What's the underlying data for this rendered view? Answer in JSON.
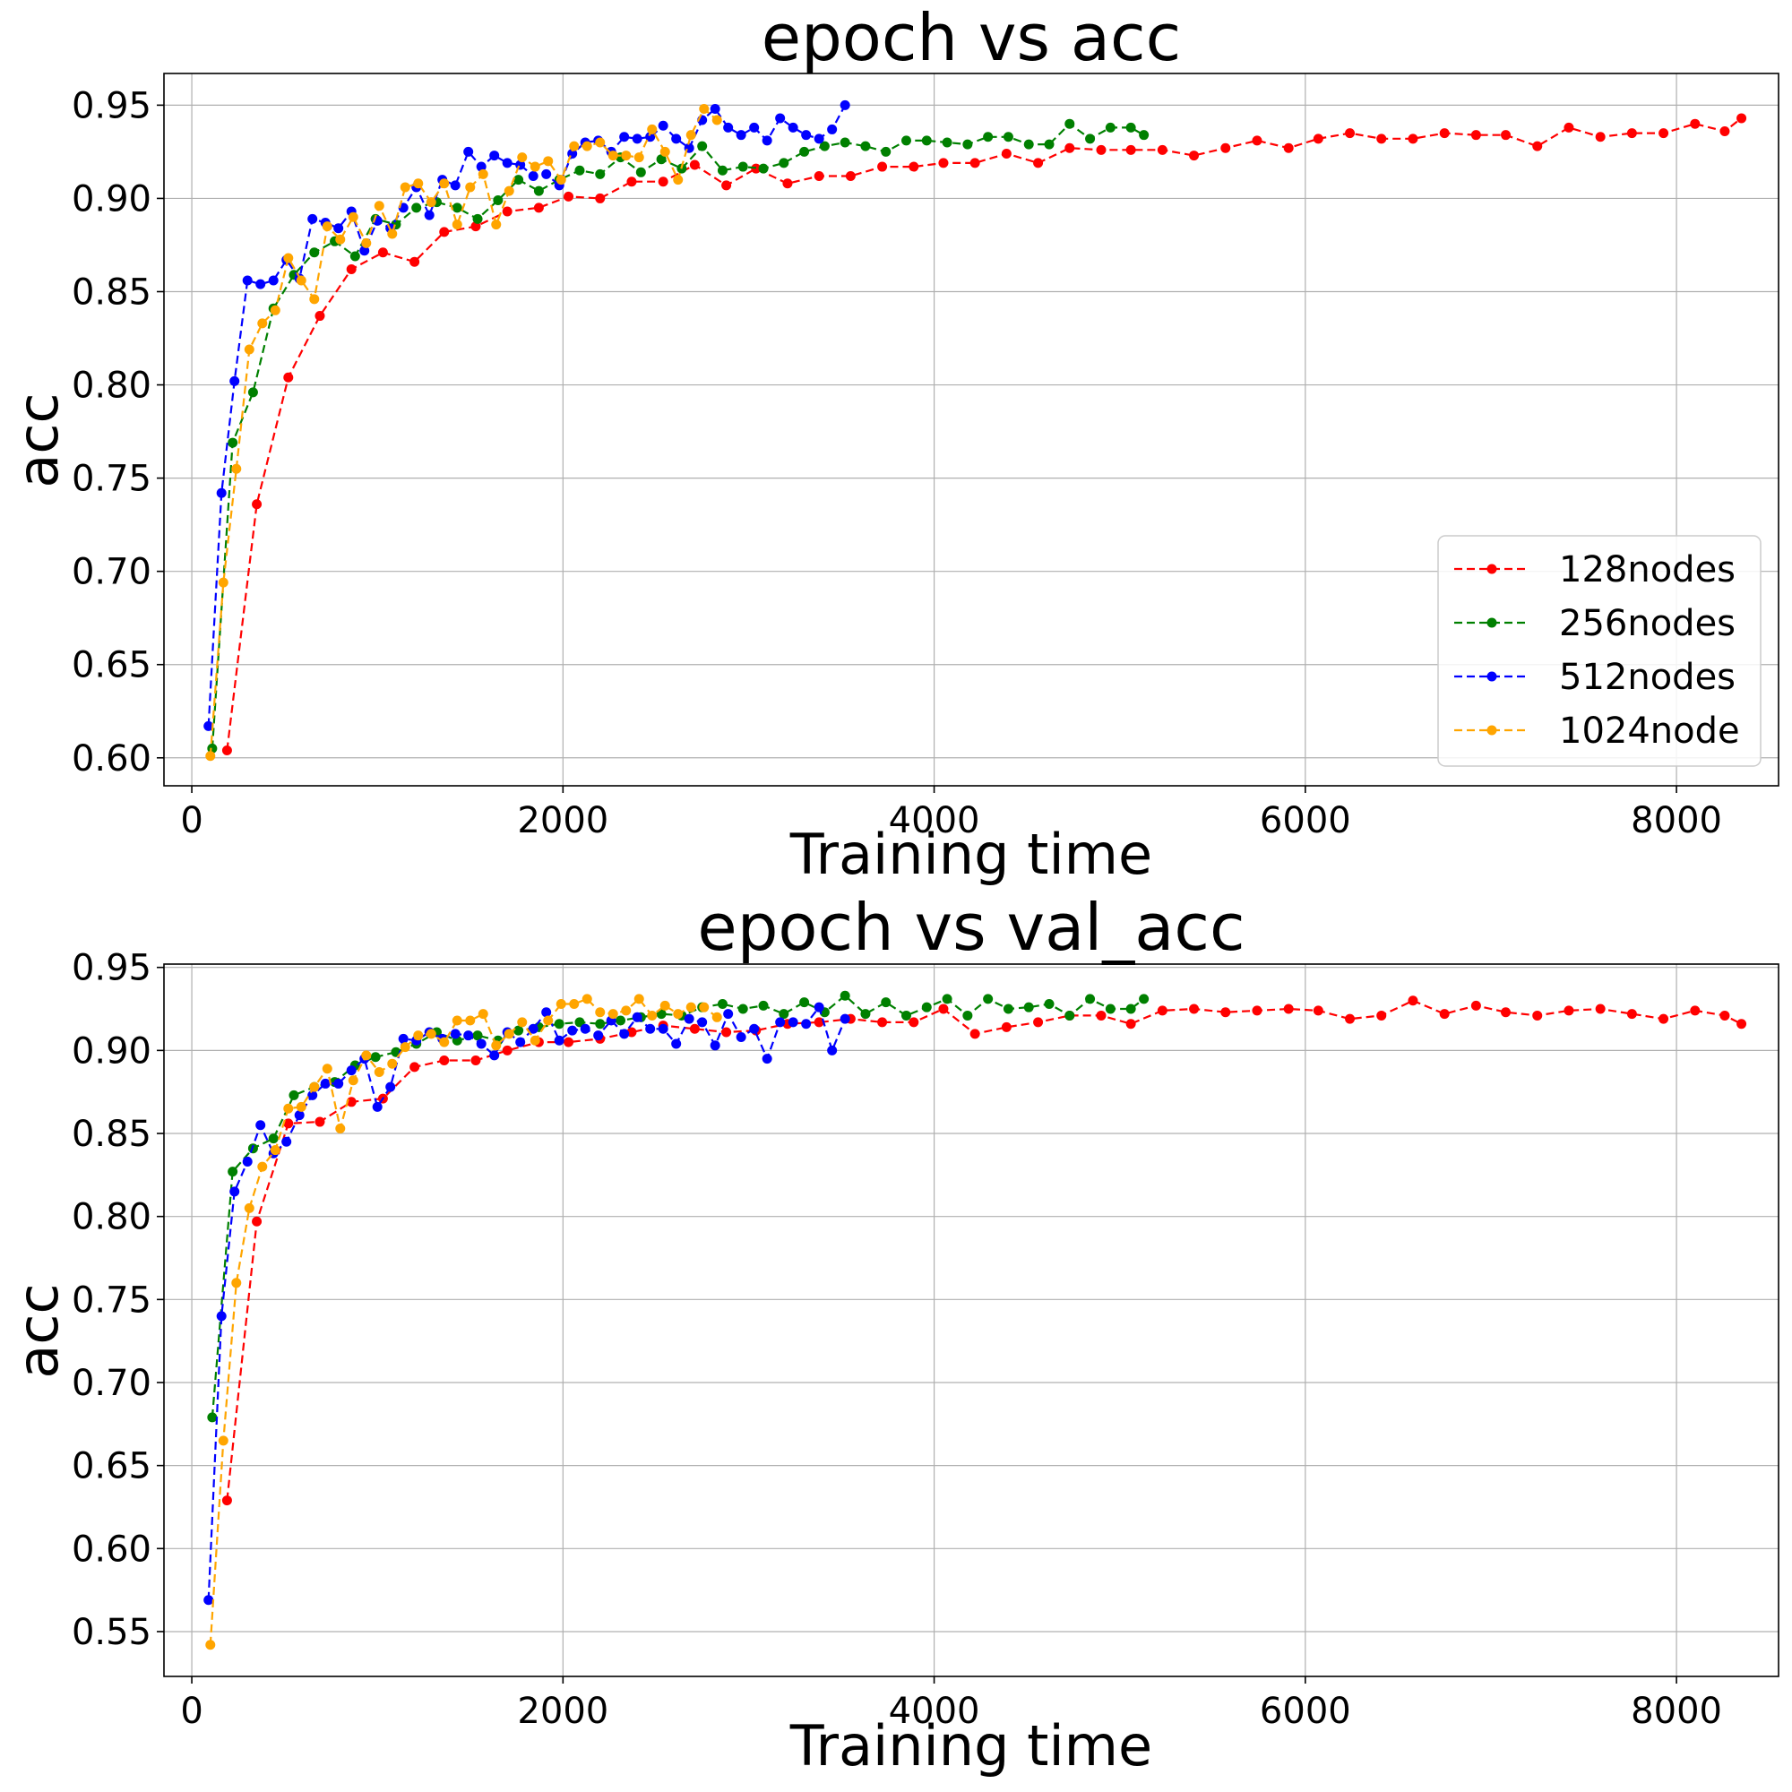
{
  "chart_data": [
    {
      "type": "line",
      "title": "epoch vs acc",
      "xlabel": "Training time",
      "ylabel": "acc",
      "xlim": [
        -150,
        8550
      ],
      "ylim": [
        0.585,
        0.967
      ],
      "xticks": [
        0,
        2000,
        4000,
        6000,
        8000
      ],
      "xtick_labels": [
        "0",
        "2000",
        "4000",
        "6000",
        "8000"
      ],
      "yticks": [
        0.6,
        0.65,
        0.7,
        0.75,
        0.8,
        0.85,
        0.9,
        0.95
      ],
      "ytick_labels": [
        "0.60",
        "0.65",
        "0.70",
        "0.75",
        "0.80",
        "0.85",
        "0.90",
        "0.95"
      ],
      "grid": true,
      "legend": "lower right",
      "series": [
        {
          "name": "128nodes",
          "color": "#ff0000",
          "style": "dashed",
          "marker": "circle",
          "x": [
            190,
            350,
            520,
            690,
            860,
            1030,
            1200,
            1360,
            1530,
            1700,
            1870,
            2030,
            2200,
            2370,
            2540,
            2710,
            2880,
            3040,
            3210,
            3380,
            3550,
            3720,
            3890,
            4050,
            4220,
            4390,
            4560,
            4730,
            4900,
            5060,
            5230,
            5400,
            5570,
            5740,
            5910,
            6070,
            6240,
            6410,
            6580,
            6750,
            6920,
            7080,
            7250,
            7420,
            7590,
            7760,
            7930,
            8100,
            8260,
            8350
          ],
          "y": [
            0.604,
            0.736,
            0.804,
            0.837,
            0.862,
            0.871,
            0.866,
            0.882,
            0.885,
            0.893,
            0.895,
            0.901,
            0.9,
            0.909,
            0.909,
            0.918,
            0.907,
            0.916,
            0.908,
            0.912,
            0.912,
            0.917,
            0.917,
            0.919,
            0.919,
            0.924,
            0.919,
            0.927,
            0.926,
            0.926,
            0.926,
            0.923,
            0.927,
            0.931,
            0.927,
            0.932,
            0.935,
            0.932,
            0.932,
            0.935,
            0.934,
            0.934,
            0.928,
            0.938,
            0.933,
            0.935,
            0.935,
            0.94,
            0.936,
            0.943
          ]
        },
        {
          "name": "256nodes",
          "color": "#008000",
          "style": "dashed",
          "marker": "circle",
          "x": [
            110,
            220,
            330,
            440,
            550,
            660,
            770,
            880,
            990,
            1100,
            1210,
            1320,
            1430,
            1540,
            1650,
            1760,
            1870,
            1980,
            2090,
            2200,
            2310,
            2420,
            2530,
            2640,
            2750,
            2860,
            2970,
            3080,
            3190,
            3300,
            3410,
            3520,
            3630,
            3740,
            3850,
            3960,
            4070,
            4180,
            4290,
            4400,
            4510,
            4620,
            4730,
            4840,
            4950,
            5060,
            5130
          ],
          "y": [
            0.605,
            0.769,
            0.796,
            0.841,
            0.859,
            0.871,
            0.877,
            0.869,
            0.889,
            0.886,
            0.895,
            0.898,
            0.895,
            0.889,
            0.899,
            0.91,
            0.904,
            0.91,
            0.915,
            0.913,
            0.922,
            0.914,
            0.921,
            0.916,
            0.928,
            0.915,
            0.917,
            0.916,
            0.919,
            0.925,
            0.928,
            0.93,
            0.928,
            0.925,
            0.931,
            0.931,
            0.93,
            0.929,
            0.933,
            0.933,
            0.929,
            0.929,
            0.94,
            0.932,
            0.938,
            0.938,
            0.934
          ]
        },
        {
          "name": "512nodes",
          "color": "#0000ff",
          "style": "dashed",
          "marker": "circle",
          "x": [
            90,
            160,
            230,
            300,
            370,
            440,
            510,
            580,
            650,
            720,
            790,
            860,
            930,
            1000,
            1070,
            1140,
            1210,
            1280,
            1350,
            1420,
            1490,
            1560,
            1630,
            1700,
            1770,
            1840,
            1910,
            1980,
            2050,
            2120,
            2190,
            2260,
            2330,
            2400,
            2470,
            2540,
            2610,
            2680,
            2750,
            2820,
            2890,
            2960,
            3030,
            3100,
            3170,
            3240,
            3310,
            3380,
            3450,
            3520
          ],
          "y": [
            0.617,
            0.742,
            0.802,
            0.856,
            0.854,
            0.856,
            0.867,
            0.857,
            0.889,
            0.887,
            0.884,
            0.893,
            0.872,
            0.888,
            0.884,
            0.895,
            0.906,
            0.891,
            0.91,
            0.907,
            0.925,
            0.917,
            0.923,
            0.919,
            0.918,
            0.912,
            0.913,
            0.907,
            0.924,
            0.93,
            0.931,
            0.925,
            0.933,
            0.932,
            0.933,
            0.939,
            0.932,
            0.927,
            0.942,
            0.948,
            0.938,
            0.934,
            0.938,
            0.931,
            0.943,
            0.938,
            0.934,
            0.932,
            0.937,
            0.95
          ]
        },
        {
          "name": "1024node",
          "color": "#ffa500",
          "style": "dashed",
          "marker": "circle",
          "x": [
            100,
            170,
            240,
            310,
            380,
            450,
            520,
            590,
            660,
            730,
            800,
            870,
            940,
            1010,
            1080,
            1150,
            1220,
            1290,
            1360,
            1430,
            1500,
            1570,
            1640,
            1710,
            1780,
            1850,
            1920,
            1990,
            2060,
            2130,
            2200,
            2270,
            2340,
            2410,
            2480,
            2550,
            2620,
            2690,
            2760,
            2830
          ],
          "y": [
            0.601,
            0.694,
            0.755,
            0.819,
            0.833,
            0.84,
            0.868,
            0.856,
            0.846,
            0.885,
            0.878,
            0.89,
            0.876,
            0.896,
            0.881,
            0.906,
            0.908,
            0.898,
            0.908,
            0.886,
            0.906,
            0.913,
            0.886,
            0.904,
            0.922,
            0.917,
            0.92,
            0.91,
            0.928,
            0.928,
            0.93,
            0.923,
            0.923,
            0.922,
            0.937,
            0.925,
            0.91,
            0.934,
            0.948,
            0.942
          ]
        }
      ]
    },
    {
      "type": "line",
      "title": "epoch vs val_acc",
      "xlabel": "Training time",
      "ylabel": "acc",
      "xlim": [
        -150,
        8550
      ],
      "ylim": [
        0.523,
        0.952
      ],
      "xticks": [
        0,
        2000,
        4000,
        6000,
        8000
      ],
      "xtick_labels": [
        "0",
        "2000",
        "4000",
        "6000",
        "8000"
      ],
      "yticks": [
        0.55,
        0.6,
        0.65,
        0.7,
        0.75,
        0.8,
        0.85,
        0.9,
        0.95
      ],
      "ytick_labels": [
        "0.55",
        "0.60",
        "0.65",
        "0.70",
        "0.75",
        "0.80",
        "0.85",
        "0.90",
        "0.95"
      ],
      "grid": true,
      "legend": "none",
      "series": [
        {
          "name": "128nodes",
          "color": "#ff0000",
          "style": "dashed",
          "marker": "circle",
          "x": [
            190,
            350,
            520,
            690,
            860,
            1030,
            1200,
            1360,
            1530,
            1700,
            1870,
            2030,
            2200,
            2370,
            2540,
            2710,
            2880,
            3040,
            3210,
            3380,
            3550,
            3720,
            3890,
            4050,
            4220,
            4390,
            4560,
            4730,
            4900,
            5060,
            5230,
            5400,
            5570,
            5740,
            5910,
            6070,
            6240,
            6410,
            6580,
            6750,
            6920,
            7080,
            7250,
            7420,
            7590,
            7760,
            7930,
            8100,
            8260,
            8350
          ],
          "y": [
            0.629,
            0.797,
            0.856,
            0.857,
            0.869,
            0.871,
            0.89,
            0.894,
            0.894,
            0.9,
            0.905,
            0.905,
            0.907,
            0.911,
            0.915,
            0.913,
            0.911,
            0.912,
            0.916,
            0.917,
            0.919,
            0.917,
            0.917,
            0.925,
            0.91,
            0.914,
            0.917,
            0.921,
            0.921,
            0.916,
            0.924,
            0.925,
            0.923,
            0.924,
            0.925,
            0.924,
            0.919,
            0.921,
            0.93,
            0.922,
            0.927,
            0.923,
            0.921,
            0.924,
            0.925,
            0.922,
            0.919,
            0.924,
            0.921,
            0.916
          ]
        },
        {
          "name": "256nodes",
          "color": "#008000",
          "style": "dashed",
          "marker": "circle",
          "x": [
            110,
            220,
            330,
            440,
            550,
            660,
            770,
            880,
            990,
            1100,
            1210,
            1320,
            1430,
            1540,
            1650,
            1760,
            1870,
            1980,
            2090,
            2200,
            2310,
            2420,
            2530,
            2640,
            2750,
            2860,
            2970,
            3080,
            3190,
            3300,
            3410,
            3520,
            3630,
            3740,
            3850,
            3960,
            4070,
            4180,
            4290,
            4400,
            4510,
            4620,
            4730,
            4840,
            4950,
            5060,
            5130
          ],
          "y": [
            0.679,
            0.827,
            0.841,
            0.847,
            0.873,
            0.878,
            0.881,
            0.891,
            0.896,
            0.899,
            0.904,
            0.911,
            0.906,
            0.909,
            0.906,
            0.912,
            0.914,
            0.916,
            0.917,
            0.916,
            0.918,
            0.92,
            0.922,
            0.921,
            0.926,
            0.928,
            0.925,
            0.927,
            0.922,
            0.929,
            0.923,
            0.933,
            0.922,
            0.929,
            0.921,
            0.926,
            0.931,
            0.921,
            0.931,
            0.925,
            0.926,
            0.928,
            0.921,
            0.931,
            0.925,
            0.925,
            0.931
          ]
        },
        {
          "name": "512nodes",
          "color": "#0000ff",
          "style": "dashed",
          "marker": "circle",
          "x": [
            90,
            160,
            230,
            300,
            370,
            440,
            510,
            580,
            650,
            720,
            790,
            860,
            930,
            1000,
            1070,
            1140,
            1210,
            1280,
            1350,
            1420,
            1490,
            1560,
            1630,
            1700,
            1770,
            1840,
            1910,
            1980,
            2050,
            2120,
            2190,
            2260,
            2330,
            2400,
            2470,
            2540,
            2610,
            2680,
            2750,
            2820,
            2890,
            2960,
            3030,
            3100,
            3170,
            3240,
            3310,
            3380,
            3450,
            3520
          ],
          "y": [
            0.569,
            0.74,
            0.815,
            0.833,
            0.855,
            0.838,
            0.845,
            0.861,
            0.873,
            0.88,
            0.88,
            0.888,
            0.895,
            0.866,
            0.878,
            0.907,
            0.906,
            0.911,
            0.907,
            0.91,
            0.909,
            0.904,
            0.897,
            0.911,
            0.905,
            0.913,
            0.923,
            0.906,
            0.912,
            0.913,
            0.909,
            0.918,
            0.91,
            0.92,
            0.913,
            0.913,
            0.904,
            0.919,
            0.917,
            0.903,
            0.922,
            0.908,
            0.913,
            0.895,
            0.917,
            0.917,
            0.916,
            0.926,
            0.9,
            0.919
          ]
        },
        {
          "name": "1024node",
          "color": "#ffa500",
          "style": "dashed",
          "marker": "circle",
          "x": [
            100,
            170,
            240,
            310,
            380,
            450,
            520,
            590,
            660,
            730,
            800,
            870,
            940,
            1010,
            1080,
            1150,
            1220,
            1290,
            1360,
            1430,
            1500,
            1570,
            1640,
            1710,
            1780,
            1850,
            1920,
            1990,
            2060,
            2130,
            2200,
            2270,
            2340,
            2410,
            2480,
            2550,
            2620,
            2690,
            2760,
            2830
          ],
          "y": [
            0.542,
            0.665,
            0.76,
            0.805,
            0.83,
            0.84,
            0.865,
            0.866,
            0.878,
            0.889,
            0.853,
            0.882,
            0.897,
            0.887,
            0.892,
            0.902,
            0.909,
            0.91,
            0.905,
            0.918,
            0.918,
            0.922,
            0.903,
            0.91,
            0.917,
            0.906,
            0.918,
            0.928,
            0.928,
            0.931,
            0.923,
            0.922,
            0.924,
            0.931,
            0.921,
            0.927,
            0.922,
            0.926,
            0.926,
            0.92
          ]
        }
      ]
    }
  ]
}
